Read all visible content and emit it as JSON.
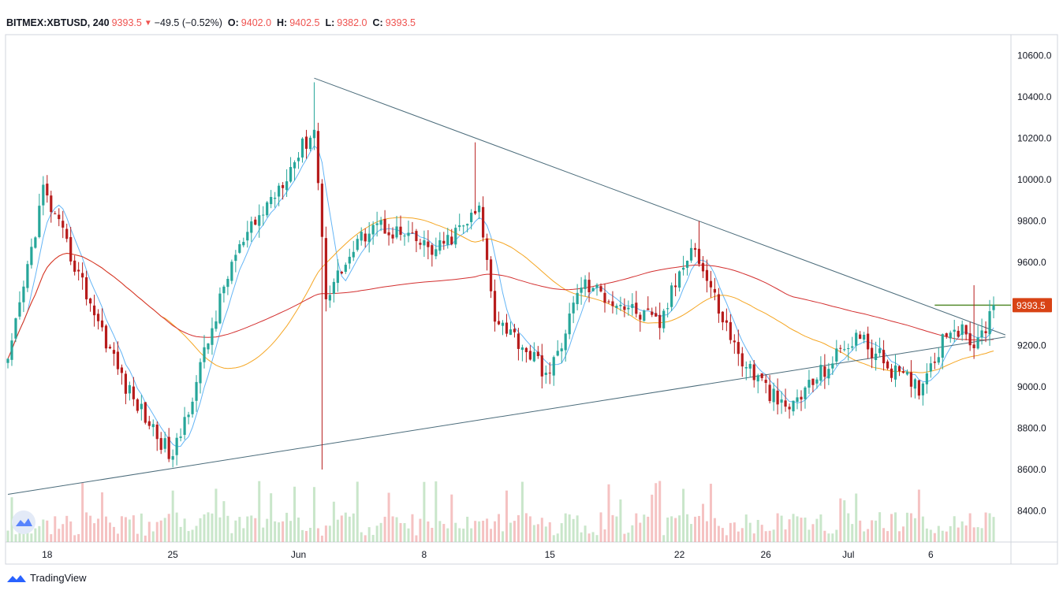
{
  "header": {
    "symbol": "BITMEX:XBTUSD, 240",
    "last": "9393.5",
    "change": "−49.5 (−0.52%)",
    "o_label": "O:",
    "o_value": "9402.0",
    "h_label": "H:",
    "h_value": "9402.5",
    "l_label": "L:",
    "l_value": "9382.0",
    "c_label": "C:",
    "c_value": "9393.5",
    "down_arrow": "▼"
  },
  "footer": {
    "brand": "TradingView"
  },
  "colors": {
    "up": "#26a69a",
    "down": "#ef5350",
    "candle_down": "#b71c1c",
    "ma_fast": "#64b5f6",
    "ma_mid": "#f5a623",
    "ma_slow": "#d32f2f",
    "trendline": "#4a6b7a",
    "price_badge": "#d84315",
    "level_line": "#558b2f"
  },
  "chart_data": {
    "type": "candlestick",
    "symbol": "BITMEX:XBTUSD",
    "interval": "240",
    "ylim": [
      8250,
      10700
    ],
    "y_ticks": [
      "10600.0",
      "10400.0",
      "10200.0",
      "10000.0",
      "9800.0",
      "9600.0",
      "9400.0",
      "9200.0",
      "9000.0",
      "8800.0",
      "8600.0",
      "8400.0"
    ],
    "y_tick_values": [
      10600,
      10400,
      10200,
      10000,
      9800,
      9600,
      9400,
      9200,
      9000,
      8800,
      8600,
      8400
    ],
    "x_ticks": [
      "18",
      "25",
      "Jun",
      "8",
      "15",
      "22",
      "26",
      "Jul",
      "6"
    ],
    "x_tick_index": [
      10,
      42,
      74,
      106,
      138,
      171,
      193,
      214,
      235
    ],
    "bar_count": 252,
    "last_price": "9393.5",
    "last_price_value": 9393.5,
    "key_price_swings": [
      {
        "index": 0,
        "price": 9100
      },
      {
        "index": 9,
        "price": 9950
      },
      {
        "index": 30,
        "price": 9000
      },
      {
        "index": 42,
        "price": 8650
      },
      {
        "index": 57,
        "price": 9600
      },
      {
        "index": 78,
        "price": 10250
      },
      {
        "index": 81,
        "price": 9450
      },
      {
        "index": 93,
        "price": 9800
      },
      {
        "index": 109,
        "price": 9650
      },
      {
        "index": 120,
        "price": 9850
      },
      {
        "index": 124,
        "price": 9350
      },
      {
        "index": 138,
        "price": 9050
      },
      {
        "index": 146,
        "price": 9500
      },
      {
        "index": 166,
        "price": 9300
      },
      {
        "index": 174,
        "price": 9700
      },
      {
        "index": 186,
        "price": 9150
      },
      {
        "index": 198,
        "price": 8880
      },
      {
        "index": 216,
        "price": 9250
      },
      {
        "index": 227,
        "price": 9050
      },
      {
        "index": 232,
        "price": 9000
      },
      {
        "index": 240,
        "price": 9300
      },
      {
        "index": 247,
        "price": 9200
      },
      {
        "index": 251,
        "price": 9393.5
      }
    ],
    "spikes": [
      {
        "index": 78,
        "high": 10470
      },
      {
        "index": 80,
        "low": 8600
      },
      {
        "index": 119,
        "high": 10180
      },
      {
        "index": 176,
        "high": 9800
      },
      {
        "index": 246,
        "high": 9490
      }
    ],
    "trendlines": [
      {
        "from": {
          "index": 78,
          "price": 10490
        },
        "to": {
          "index": 254,
          "price": 9250
        }
      },
      {
        "from": {
          "index": 0,
          "price": 8480
        },
        "to": {
          "index": 254,
          "price": 9240
        }
      }
    ],
    "horizontal_level": {
      "price": 9393.5,
      "from_index": 236
    },
    "moving_averages": [
      "ma_fast",
      "ma_mid",
      "ma_slow"
    ],
    "grid": false,
    "volume_pane": true
  }
}
